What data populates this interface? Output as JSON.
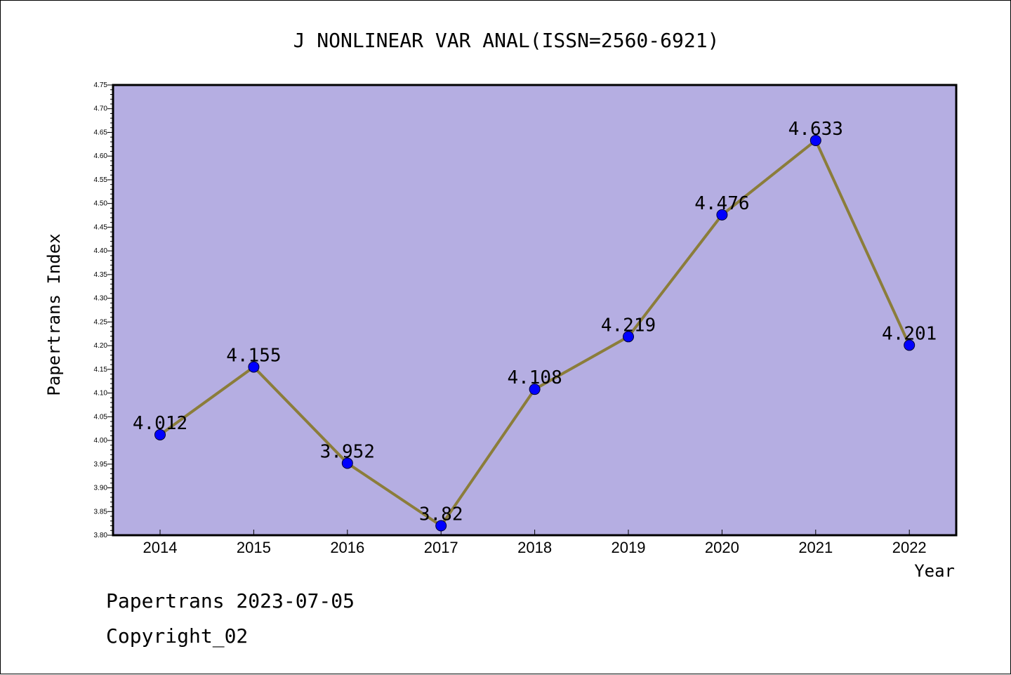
{
  "chart_data": {
    "type": "line",
    "title": "J NONLINEAR VAR ANAL(ISSN=2560-6921)",
    "xlabel": "Year",
    "ylabel": "Papertrans Index",
    "categories": [
      "2014",
      "2015",
      "2016",
      "2017",
      "2018",
      "2019",
      "2020",
      "2021",
      "2022"
    ],
    "values": [
      4.012,
      4.155,
      3.952,
      3.82,
      4.108,
      4.219,
      4.476,
      4.633,
      4.201
    ],
    "value_labels": [
      "4.012",
      "4.155",
      "3.952",
      "3.82",
      "4.108",
      "4.219",
      "4.476",
      "4.633",
      "4.201"
    ],
    "ylim": [
      3.8,
      4.75
    ],
    "y_ticks": [
      "3.80",
      "3.85",
      "3.90",
      "3.95",
      "4.00",
      "4.05",
      "4.10",
      "4.15",
      "4.20",
      "4.25",
      "4.30",
      "4.35",
      "4.40",
      "4.45",
      "4.50",
      "4.55",
      "4.60",
      "4.65",
      "4.70",
      "4.75"
    ],
    "grid": false,
    "legend": "none",
    "colors": {
      "plot_background": "#b5aee2",
      "line": "#8b7d3a",
      "marker": "#0000ff",
      "axis": "#000000"
    }
  },
  "footer": {
    "date_line": "Papertrans 2023-07-05",
    "copyright": "Copyright_02"
  }
}
